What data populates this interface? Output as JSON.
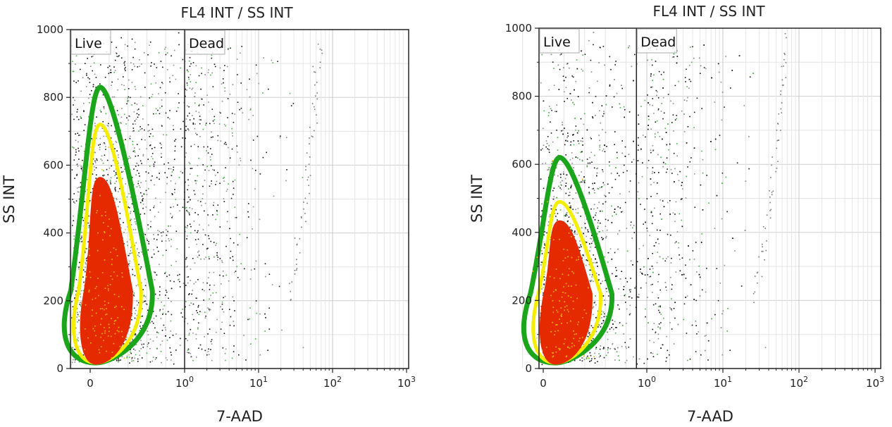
{
  "chart_data": [
    {
      "type": "scatter",
      "title": "FL4 INT / SS INT",
      "xlabel": "7-AAD",
      "ylabel": "SS INT",
      "x_scale": "biexponential (linear near 0, log above 10^0)",
      "x_ticks": [
        {
          "value": 0,
          "label": "0"
        },
        {
          "value": 1,
          "label": "10",
          "exp": "0"
        },
        {
          "value": 10,
          "label": "10",
          "exp": "1"
        },
        {
          "value": 100,
          "label": "10",
          "exp": "2"
        },
        {
          "value": 1000,
          "label": "10",
          "exp": "3"
        }
      ],
      "y_ticks": [
        0,
        200,
        400,
        600,
        800,
        1000
      ],
      "ylim": [
        0,
        1000
      ],
      "grid": true,
      "gates": [
        {
          "label": "Live",
          "x_range": [
            "min",
            1
          ]
        },
        {
          "label": "Dead",
          "x_range": [
            1,
            "max"
          ]
        }
      ],
      "density": {
        "center_x": 0.15,
        "center_y": 230,
        "contour_colors": [
          "#1aa51a",
          "#f5ee00",
          "#e62a00"
        ],
        "outer_contour_top_y": 830,
        "middle_contour_top_y": 720,
        "inner_contour_top_y": 560
      }
    },
    {
      "type": "scatter",
      "title": "FL4 INT / SS INT",
      "xlabel": "7-AAD",
      "ylabel": "SS INT",
      "x_scale": "biexponential (linear near 0, log above 10^0)",
      "x_ticks": [
        {
          "value": 0,
          "label": "0"
        },
        {
          "value": 1,
          "label": "10",
          "exp": "0"
        },
        {
          "value": 10,
          "label": "10",
          "exp": "1"
        },
        {
          "value": 100,
          "label": "10",
          "exp": "2"
        },
        {
          "value": 1000,
          "label": "10",
          "exp": "3"
        }
      ],
      "y_ticks": [
        0,
        200,
        400,
        600,
        800,
        1000
      ],
      "ylim": [
        0,
        1000
      ],
      "grid": true,
      "gates": [
        {
          "label": "Live",
          "x_range": [
            "min",
            0.9
          ]
        },
        {
          "label": "Dead",
          "x_range": [
            0.9,
            "max"
          ]
        }
      ],
      "density": {
        "center_x": 0.2,
        "center_y": 220,
        "contour_colors": [
          "#1aa51a",
          "#f5ee00",
          "#e62a00"
        ],
        "outer_contour_top_y": 620,
        "middle_contour_top_y": 490,
        "inner_contour_top_y": 430
      }
    }
  ]
}
